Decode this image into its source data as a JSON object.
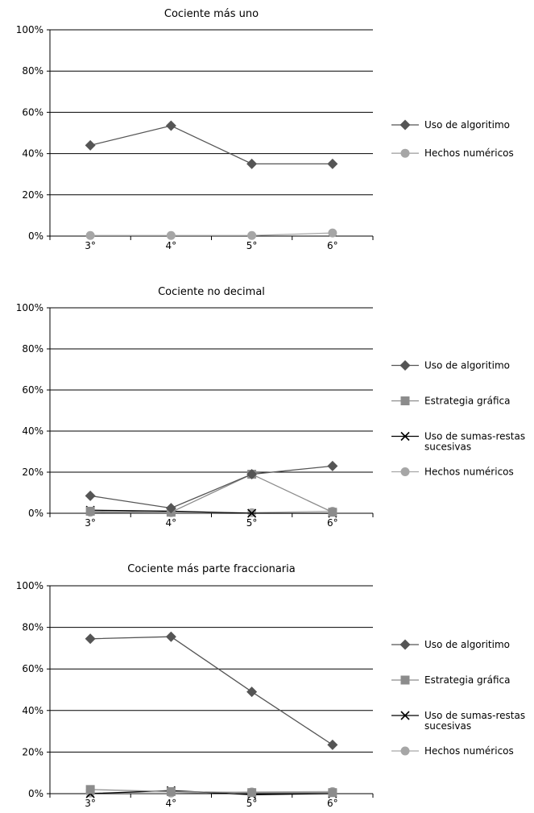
{
  "chart_data": [
    {
      "type": "line",
      "title": "Cociente más uno",
      "xlabel": "",
      "ylabel": "",
      "categories": [
        "3°",
        "4°",
        "5°",
        "6°"
      ],
      "ylim": [
        0,
        100
      ],
      "yticks": [
        "0%",
        "20%",
        "40%",
        "60%",
        "80%",
        "100%"
      ],
      "grid": true,
      "legend_position": "right",
      "series": [
        {
          "name": "Uso de algoritimo",
          "values": [
            44,
            53.5,
            35,
            35
          ],
          "color": "#555555",
          "marker": "diamond"
        },
        {
          "name": "Hechos numéricos",
          "values": [
            0.3,
            0.3,
            0.3,
            1.5
          ],
          "color": "#a6a6a6",
          "marker": "circle"
        }
      ]
    },
    {
      "type": "line",
      "title": "Cociente no decimal",
      "xlabel": "",
      "ylabel": "",
      "categories": [
        "3°",
        "4°",
        "5°",
        "6°"
      ],
      "ylim": [
        0,
        100
      ],
      "yticks": [
        "0%",
        "20%",
        "40%",
        "60%",
        "80%",
        "100%"
      ],
      "grid": true,
      "legend_position": "right",
      "series": [
        {
          "name": "Uso de algoritimo",
          "values": [
            8.5,
            2.5,
            19,
            23
          ],
          "color": "#555555",
          "marker": "diamond"
        },
        {
          "name": "Estrategia gráfica",
          "values": [
            1,
            0.5,
            19,
            0.5
          ],
          "color": "#8c8c8c",
          "marker": "square"
        },
        {
          "name": "Uso de sumas-restas sucesivas",
          "values": [
            1.5,
            1,
            0,
            0
          ],
          "color": "#000000",
          "marker": "x"
        },
        {
          "name": "Hechos numéricos",
          "values": [
            0.5,
            0.3,
            0.3,
            1
          ],
          "color": "#a6a6a6",
          "marker": "circle"
        }
      ]
    },
    {
      "type": "line",
      "title": "Cociente más parte fraccionaria",
      "xlabel": "",
      "ylabel": "",
      "categories": [
        "3°",
        "4°",
        "5°",
        "6°"
      ],
      "ylim": [
        0,
        100
      ],
      "yticks": [
        "0%",
        "20%",
        "40%",
        "60%",
        "80%",
        "100%"
      ],
      "grid": true,
      "legend_position": "right",
      "series": [
        {
          "name": "Uso de algoritimo",
          "values": [
            74.5,
            75.5,
            49,
            23.5
          ],
          "color": "#555555",
          "marker": "diamond"
        },
        {
          "name": "Estrategia gráfica",
          "values": [
            2,
            1,
            0.5,
            0.5
          ],
          "color": "#8c8c8c",
          "marker": "square"
        },
        {
          "name": "Uso de sumas-restas sucesivas",
          "values": [
            0,
            1.5,
            -0.5,
            0
          ],
          "color": "#000000",
          "marker": "x"
        },
        {
          "name": "Hechos numéricos",
          "values": [
            0.3,
            0.3,
            0.8,
            1
          ],
          "color": "#a6a6a6",
          "marker": "circle"
        }
      ]
    }
  ]
}
